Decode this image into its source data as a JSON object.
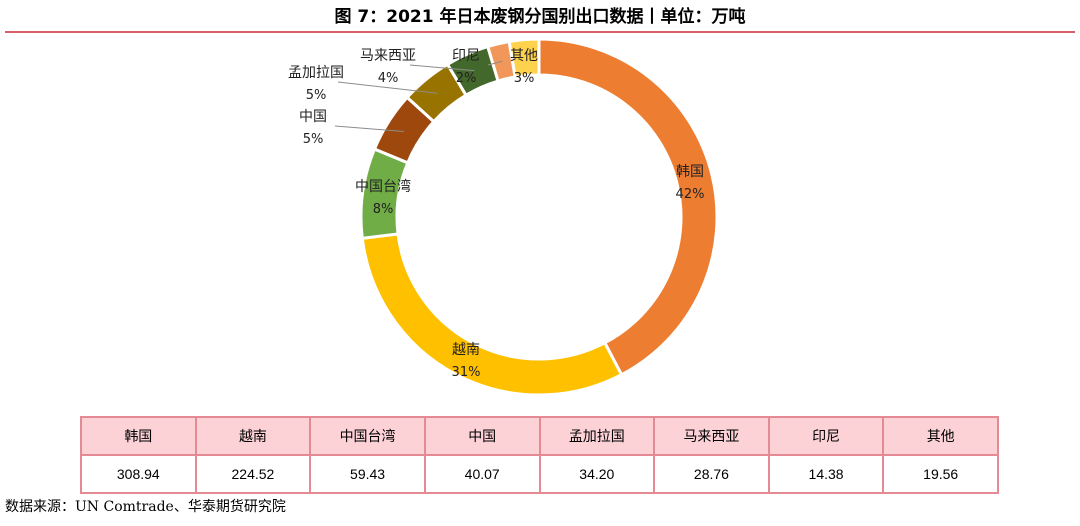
{
  "figure": {
    "title": "图 7：2021 年日本废钢分国别出口数据丨单位：万吨",
    "source": "数据来源：UN Comtrade、华泰期货研究院"
  },
  "chart_data": {
    "type": "pie",
    "subtype": "donut",
    "title": "图 7：2021 年日本废钢分国别出口数据丨单位：万吨",
    "unit": "万吨",
    "categories": [
      "韩国",
      "越南",
      "中国台湾",
      "中国",
      "孟加拉国",
      "马来西亚",
      "印尼",
      "其他"
    ],
    "values": [
      308.94,
      224.52,
      59.43,
      40.07,
      34.2,
      28.76,
      14.38,
      19.56
    ],
    "percent_labels": [
      "42%",
      "31%",
      "8%",
      "5%",
      "5%",
      "4%",
      "2%",
      "3%"
    ],
    "colors": [
      "#ed7d31",
      "#ffc000",
      "#70ad47",
      "#9e480e",
      "#997300",
      "#43682b",
      "#f1975a",
      "#ffd24d"
    ],
    "legend": "none",
    "table": {
      "headers": [
        "韩国",
        "越南",
        "中国台湾",
        "中国",
        "孟加拉国",
        "马来西亚",
        "印尼",
        "其他"
      ],
      "values": [
        "308.94",
        "224.52",
        "59.43",
        "40.07",
        "34.20",
        "28.76",
        "14.38",
        "19.56"
      ]
    }
  }
}
